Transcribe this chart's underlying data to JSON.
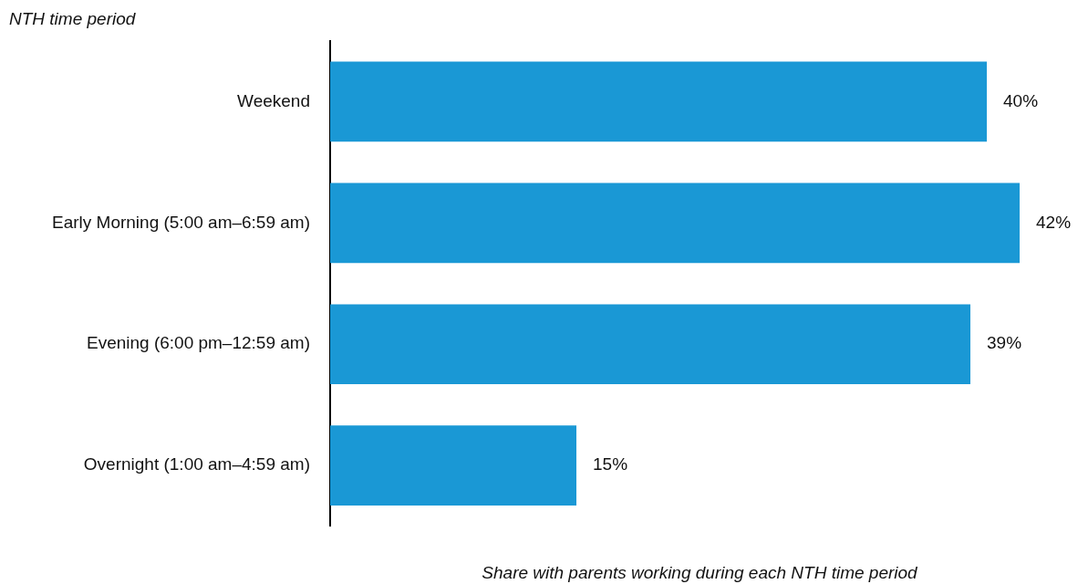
{
  "chart_data": {
    "type": "bar",
    "orientation": "horizontal",
    "ylabel": "NTH time period",
    "xlabel": "Share with parents working during each NTH time period",
    "categories": [
      "Weekend",
      "Early Morning (5:00 am–6:59 am)",
      "Evening (6:00 pm–12:59 am)",
      "Overnight (1:00 am–4:59 am)"
    ],
    "values": [
      40,
      42,
      39,
      15
    ],
    "value_labels": [
      "40%",
      "42%",
      "39%",
      "15%"
    ],
    "color": "#1a98d5",
    "legend": false,
    "tick_labels": "y"
  }
}
